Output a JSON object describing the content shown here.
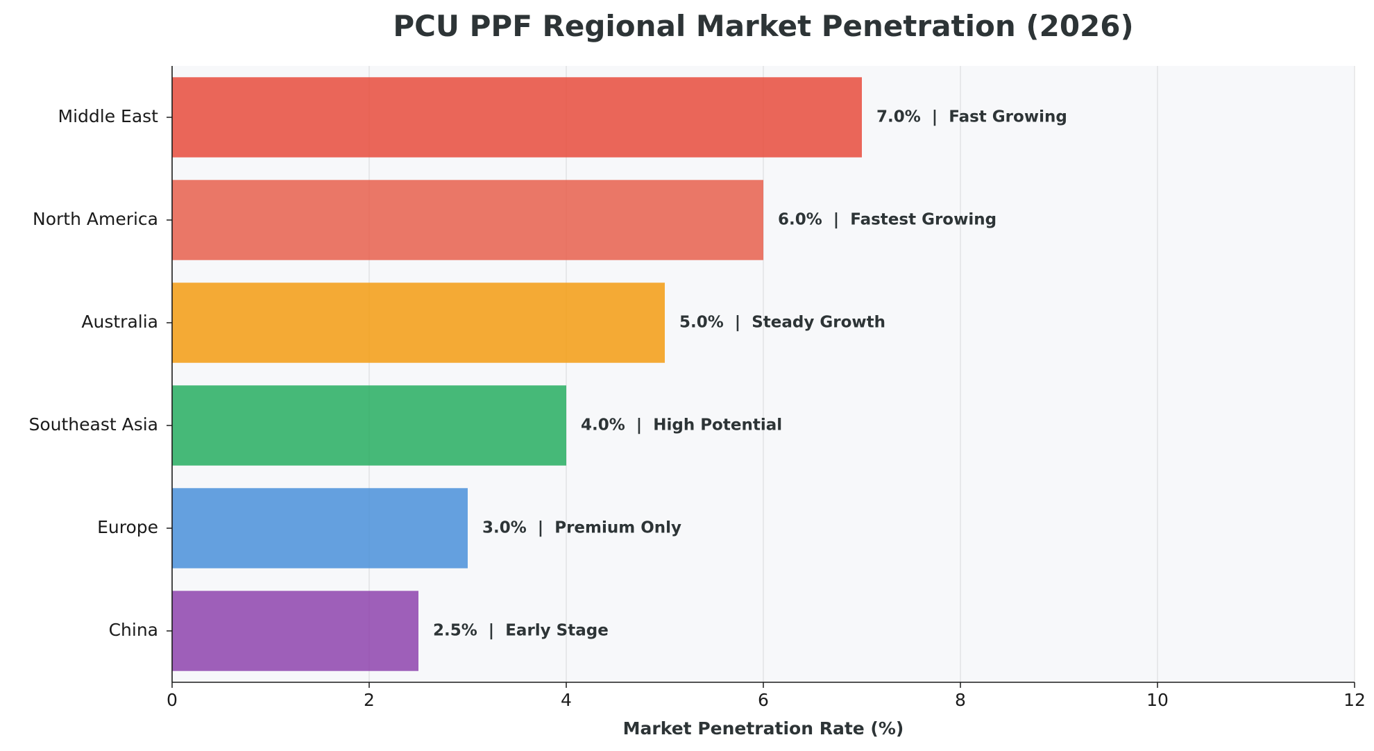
{
  "chart_data": {
    "type": "bar",
    "orientation": "horizontal",
    "title": "PCU PPF Regional Market Penetration (2026)",
    "xlabel": "Market Penetration Rate (%)",
    "ylabel": "",
    "xlim": [
      0,
      12
    ],
    "xticks": [
      0,
      2,
      4,
      6,
      8,
      10,
      12
    ],
    "grid": "vertical",
    "categories": [
      "Middle East",
      "North America",
      "Australia",
      "Southeast Asia",
      "Europe",
      "China"
    ],
    "values": [
      7.0,
      6.0,
      5.0,
      4.0,
      3.0,
      2.5
    ],
    "annotations": [
      "7.0%  |  Fast Growing",
      "6.0%  |  Fastest Growing",
      "5.0%  |  Steady Growth",
      "4.0%  |  High Potential",
      "3.0%  |  Premium Only",
      "2.5%  |  Early Stage"
    ],
    "colors": [
      "#e74c3c",
      "#e8604c",
      "#f39c12",
      "#27ae60",
      "#4a90d9",
      "#8e44ad"
    ],
    "plot_background": "#f7f8fa"
  }
}
